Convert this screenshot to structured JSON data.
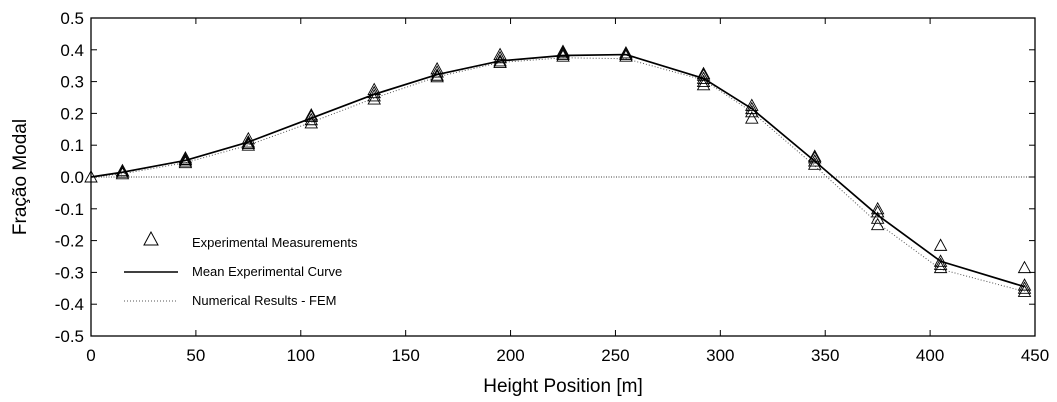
{
  "chart_data": {
    "type": "line",
    "xlabel": "Height Position [m]",
    "ylabel": "Fração Modal",
    "xlim": [
      0,
      450
    ],
    "ylim": [
      -0.5,
      0.5
    ],
    "x_ticks": [
      0,
      50,
      100,
      150,
      200,
      250,
      300,
      350,
      400,
      450
    ],
    "y_ticks": [
      "-0.5",
      "-0.4",
      "-0.3",
      "-0.2",
      "-0.1",
      "0.0",
      "0.1",
      "0.2",
      "0.3",
      "0.4",
      "0.5"
    ],
    "grid": false,
    "zero_line": true,
    "legend_position": "bottom-left",
    "series": [
      {
        "name": "Experimental Measurements",
        "style": "triangle-markers",
        "points": [
          [
            0,
            0.0
          ],
          [
            15,
            0.01
          ],
          [
            15,
            0.015
          ],
          [
            15,
            0.02
          ],
          [
            45,
            0.045
          ],
          [
            45,
            0.05
          ],
          [
            45,
            0.055
          ],
          [
            45,
            0.06
          ],
          [
            75,
            0.1
          ],
          [
            75,
            0.105
          ],
          [
            75,
            0.11
          ],
          [
            75,
            0.12
          ],
          [
            105,
            0.17
          ],
          [
            105,
            0.18
          ],
          [
            105,
            0.19
          ],
          [
            105,
            0.195
          ],
          [
            135,
            0.245
          ],
          [
            135,
            0.255
          ],
          [
            135,
            0.265
          ],
          [
            135,
            0.275
          ],
          [
            165,
            0.315
          ],
          [
            165,
            0.32
          ],
          [
            165,
            0.33
          ],
          [
            165,
            0.34
          ],
          [
            195,
            0.36
          ],
          [
            195,
            0.365
          ],
          [
            195,
            0.375
          ],
          [
            195,
            0.385
          ],
          [
            225,
            0.38
          ],
          [
            225,
            0.385
          ],
          [
            225,
            0.39
          ],
          [
            225,
            0.395
          ],
          [
            255,
            0.38
          ],
          [
            255,
            0.385
          ],
          [
            255,
            0.39
          ],
          [
            292,
            0.29
          ],
          [
            292,
            0.3
          ],
          [
            292,
            0.31
          ],
          [
            292,
            0.32
          ],
          [
            292,
            0.325
          ],
          [
            315,
            0.185
          ],
          [
            315,
            0.205
          ],
          [
            315,
            0.215
          ],
          [
            315,
            0.225
          ],
          [
            345,
            0.04
          ],
          [
            345,
            0.05
          ],
          [
            345,
            0.06
          ],
          [
            345,
            0.065
          ],
          [
            375,
            -0.15
          ],
          [
            375,
            -0.13
          ],
          [
            375,
            -0.11
          ],
          [
            375,
            -0.1
          ],
          [
            405,
            -0.285
          ],
          [
            405,
            -0.275
          ],
          [
            405,
            -0.265
          ],
          [
            405,
            -0.215
          ],
          [
            445,
            -0.36
          ],
          [
            445,
            -0.35
          ],
          [
            445,
            -0.34
          ],
          [
            445,
            -0.285
          ]
        ]
      },
      {
        "name": "Mean Experimental Curve",
        "style": "solid",
        "color": "#000000",
        "x": [
          0,
          15,
          45,
          75,
          105,
          135,
          165,
          195,
          225,
          255,
          292,
          315,
          345,
          375,
          405,
          445
        ],
        "y": [
          0.0,
          0.015,
          0.052,
          0.11,
          0.185,
          0.26,
          0.322,
          0.365,
          0.382,
          0.385,
          0.31,
          0.215,
          0.05,
          -0.12,
          -0.265,
          -0.345
        ]
      },
      {
        "name": "Numerical Results - FEM",
        "style": "dotted",
        "color": "#555555",
        "x": [
          0,
          15,
          45,
          75,
          105,
          135,
          165,
          195,
          225,
          255,
          292,
          315,
          345,
          375,
          405,
          445
        ],
        "y": [
          0.0,
          0.01,
          0.045,
          0.1,
          0.172,
          0.248,
          0.315,
          0.36,
          0.375,
          0.372,
          0.305,
          0.205,
          0.035,
          -0.145,
          -0.29,
          -0.36
        ]
      }
    ]
  }
}
